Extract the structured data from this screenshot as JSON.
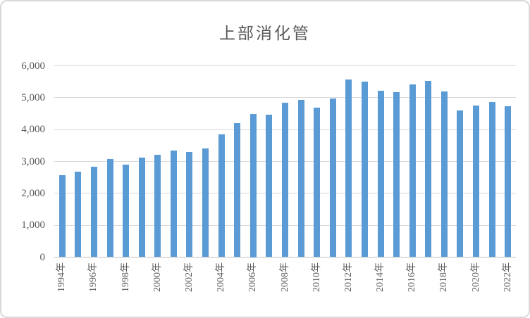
{
  "chart_data": {
    "type": "bar",
    "title": "上部消化管",
    "categories": [
      "1994年",
      "1995年",
      "1996年",
      "1997年",
      "1998年",
      "1999年",
      "2000年",
      "2001年",
      "2002年",
      "2003年",
      "2004年",
      "2005年",
      "2006年",
      "2007年",
      "2008年",
      "2009年",
      "2010年",
      "2011年",
      "2012年",
      "2013年",
      "2014年",
      "2015年",
      "2016年",
      "2017年",
      "2018年",
      "2019年",
      "2020年",
      "2021年",
      "2022年"
    ],
    "values": [
      2580,
      2670,
      2840,
      3070,
      2910,
      3130,
      3210,
      3350,
      3300,
      3400,
      3840,
      4210,
      4500,
      4460,
      4840,
      4930,
      4680,
      4980,
      5560,
      5510,
      5220,
      5180,
      5420,
      5530,
      5190,
      4600,
      4750,
      4870,
      4730
    ],
    "xlabel": "",
    "ylabel": "",
    "ylim": [
      0,
      6000
    ],
    "y_tick_step": 1000,
    "y_tick_labels": [
      "0",
      "1,000",
      "2,000",
      "3,000",
      "4,000",
      "5,000",
      "6,000"
    ],
    "x_tick_labels": [
      "1994年",
      "1996年",
      "1998年",
      "2000年",
      "2002年",
      "2004年",
      "2006年",
      "2008年",
      "2010年",
      "2012年",
      "2014年",
      "2016年",
      "2018年",
      "2020年",
      "2022年"
    ],
    "x_label_every": 2,
    "grid": "horizontal",
    "legend": "none",
    "colors": {
      "bar": "#5B9BD5",
      "gridline": "#D9D9D9",
      "axis_line": "#BFBFBF",
      "text": "#595959",
      "border": "#D9D9D9",
      "background": "#FFFFFF"
    }
  }
}
